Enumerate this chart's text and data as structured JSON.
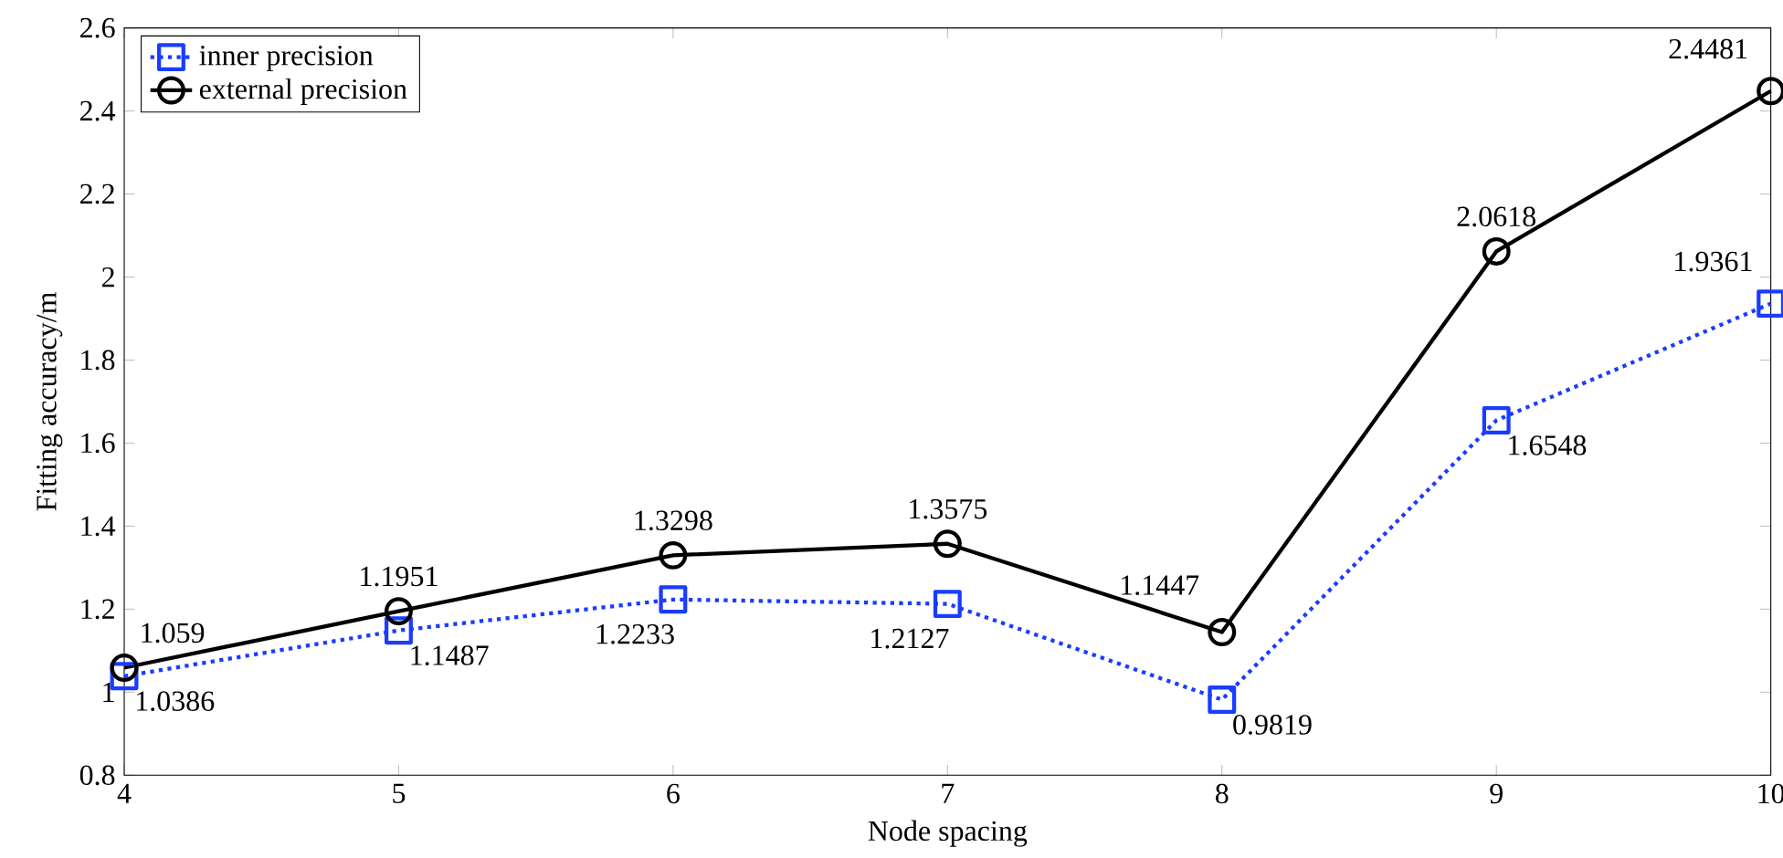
{
  "chart_data": {
    "type": "line",
    "xlabel": "Node spacing",
    "ylabel": "Fitting accuracy/m",
    "x": [
      4,
      5,
      6,
      7,
      8,
      9,
      10
    ],
    "series": [
      {
        "name": "inner precision",
        "color": "#1a3cff",
        "marker": "square",
        "line_style": "dotted",
        "values": [
          1.0386,
          1.1487,
          1.2233,
          1.2127,
          0.9819,
          1.6548,
          1.9361
        ],
        "value_labels": [
          "1.0386",
          "1.1487",
          "1.2233",
          "1.2127",
          "0.9819",
          "1.6548",
          "1.9361"
        ]
      },
      {
        "name": "external precision",
        "color": "#000000",
        "marker": "circle",
        "line_style": "solid",
        "values": [
          1.059,
          1.1951,
          1.3298,
          1.3575,
          1.1447,
          2.0618,
          2.4481
        ],
        "value_labels": [
          "1.059",
          "1.1951",
          "1.3298",
          "1.3575",
          "1.1447",
          "2.0618",
          "2.4481"
        ]
      }
    ],
    "xlim": [
      4,
      10
    ],
    "xticks": [
      4,
      5,
      6,
      7,
      8,
      9,
      10
    ],
    "ylim": [
      0.8,
      2.6
    ],
    "yticks": [
      0.8,
      1,
      1.2,
      1.4,
      1.6,
      1.8,
      2,
      2.2,
      2.4,
      2.6
    ],
    "legend": "top left",
    "grid": false
  }
}
